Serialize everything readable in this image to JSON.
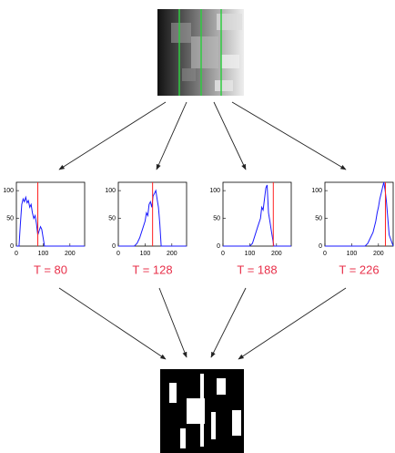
{
  "line_color": "#1a1aff",
  "threshold_color": "#ff2020",
  "label_color": "#e8304a",
  "panels": [
    {
      "threshold": {
        "value": 80,
        "label": "T = 80"
      },
      "xlim": [
        0,
        255
      ],
      "ylim": [
        0,
        115
      ],
      "xticks": [
        0,
        100,
        200
      ],
      "yticks": [
        0,
        50,
        100
      ],
      "x": [
        0,
        10,
        15,
        20,
        25,
        30,
        35,
        40,
        45,
        50,
        55,
        60,
        65,
        70,
        75,
        80,
        90,
        95,
        100,
        105,
        110,
        255
      ],
      "y": [
        0,
        0,
        40,
        75,
        85,
        80,
        88,
        78,
        82,
        70,
        75,
        60,
        50,
        55,
        40,
        20,
        35,
        30,
        15,
        0,
        0,
        0
      ]
    },
    {
      "threshold": {
        "value": 128,
        "label": "T = 128"
      },
      "xlim": [
        0,
        255
      ],
      "ylim": [
        0,
        115
      ],
      "xticks": [
        0,
        100,
        200
      ],
      "yticks": [
        0,
        50,
        100
      ],
      "x": [
        0,
        60,
        70,
        80,
        90,
        100,
        105,
        110,
        115,
        120,
        125,
        130,
        135,
        140,
        145,
        150,
        155,
        160,
        170,
        255
      ],
      "y": [
        0,
        0,
        5,
        15,
        30,
        45,
        60,
        55,
        75,
        80,
        70,
        90,
        95,
        100,
        85,
        70,
        40,
        0,
        0,
        0
      ]
    },
    {
      "threshold": {
        "value": 188,
        "label": "T = 188"
      },
      "xlim": [
        0,
        255
      ],
      "ylim": [
        0,
        115
      ],
      "xticks": [
        0,
        100,
        200
      ],
      "yticks": [
        0,
        50,
        100
      ],
      "x": [
        0,
        100,
        110,
        120,
        130,
        140,
        145,
        150,
        155,
        160,
        165,
        170,
        175,
        180,
        185,
        190,
        255
      ],
      "y": [
        0,
        0,
        5,
        20,
        35,
        50,
        70,
        65,
        85,
        105,
        110,
        60,
        45,
        30,
        15,
        0,
        0
      ]
    },
    {
      "threshold": {
        "value": 226,
        "label": "T = 226"
      },
      "xlim": [
        0,
        255
      ],
      "ylim": [
        0,
        115
      ],
      "xticks": [
        0,
        100,
        200
      ],
      "yticks": [
        0,
        50,
        100
      ],
      "x": [
        0,
        150,
        160,
        170,
        180,
        190,
        195,
        200,
        205,
        210,
        215,
        220,
        225,
        230,
        235,
        240,
        255
      ],
      "y": [
        0,
        0,
        5,
        15,
        25,
        45,
        60,
        70,
        85,
        95,
        105,
        115,
        100,
        80,
        50,
        20,
        0
      ]
    }
  ]
}
